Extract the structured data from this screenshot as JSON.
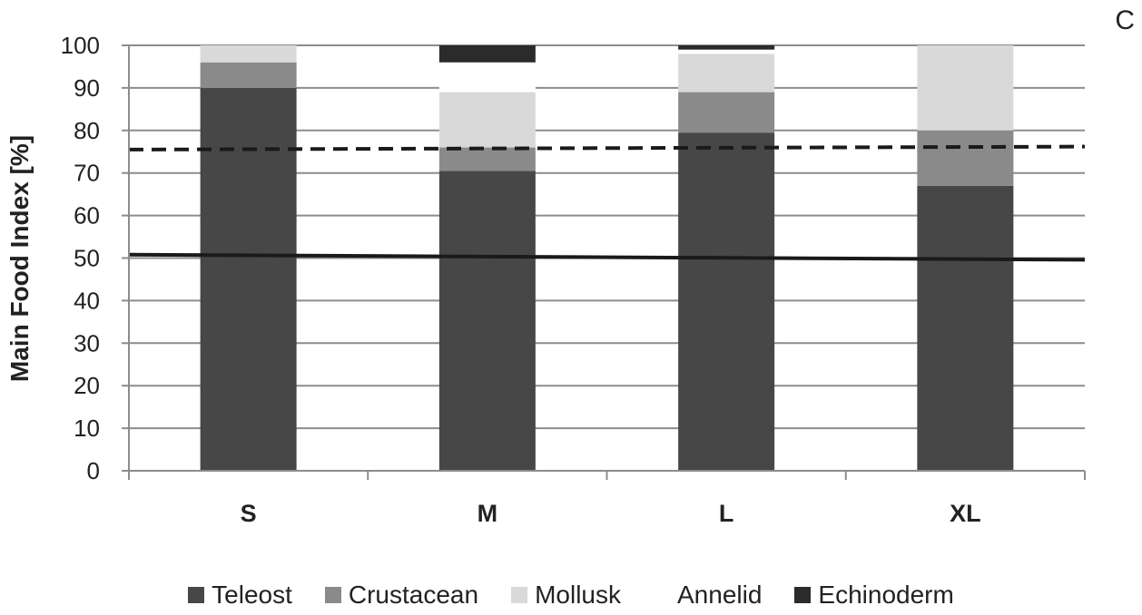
{
  "panel_label": "C",
  "chart_data": {
    "type": "bar",
    "stacked": true,
    "categories": [
      "S",
      "M",
      "L",
      "XL"
    ],
    "series": [
      {
        "name": "Teleost",
        "color": "#474747",
        "values": [
          90,
          70.5,
          79.5,
          67
        ]
      },
      {
        "name": "Crustacean",
        "color": "#8a8a8a",
        "values": [
          6,
          5.5,
          9.5,
          13
        ]
      },
      {
        "name": "Mollusk",
        "color": "#d9d9d9",
        "values": [
          4,
          13,
          9,
          20
        ]
      },
      {
        "name": "Annelid",
        "color": "#ffffff",
        "values": [
          0,
          7,
          1,
          0
        ]
      },
      {
        "name": "Echinoderm",
        "color": "#2b2b2b",
        "values": [
          0,
          4,
          1,
          0
        ]
      }
    ],
    "reference_lines": [
      {
        "style": "dashed",
        "y_start": 75.5,
        "y_end": 76.2
      },
      {
        "style": "solid",
        "y_start": 50.8,
        "y_end": 49.6
      }
    ],
    "ylabel": "Main Food Index [%]",
    "xlabel": "",
    "ylim": [
      0,
      100
    ],
    "yticks": [
      0,
      10,
      20,
      30,
      40,
      50,
      60,
      70,
      80,
      90,
      100
    ],
    "grid": true,
    "legend_position": "bottom"
  }
}
